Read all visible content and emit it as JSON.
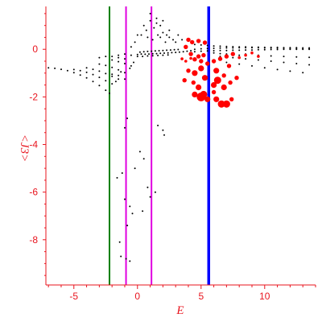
{
  "chart_data": {
    "type": "scatter",
    "xlabel": "E",
    "ylabel": "<J3>",
    "xlim": [
      -7.2,
      14.0
    ],
    "ylim": [
      -9.9,
      1.8
    ],
    "grid": false,
    "x_ticks": [
      -5,
      0,
      5,
      10
    ],
    "y_ticks": [
      0,
      -2,
      -4,
      -6,
      -8
    ],
    "vertical_lines": [
      {
        "x": -2.2,
        "color": "#008000"
      },
      {
        "x": -0.9,
        "color": "#e000e0"
      },
      {
        "x": 1.1,
        "color": "#e000e0"
      },
      {
        "x": 5.6,
        "color": "#0000ff"
      }
    ],
    "series": [
      {
        "color": "#000000",
        "points": [
          [
            -7.0,
            -0.78
          ],
          [
            -6.5,
            -0.8
          ],
          [
            -6.0,
            -0.84
          ],
          [
            -5.5,
            -0.9
          ],
          [
            -5.0,
            -0.98
          ],
          [
            -4.5,
            -1.08
          ],
          [
            -4.0,
            -1.2
          ],
          [
            -3.5,
            -1.35
          ],
          [
            -3.0,
            -1.52
          ],
          [
            -2.5,
            -1.72
          ],
          [
            -2.2,
            -1.85
          ],
          [
            -5.0,
            -0.85
          ],
          [
            -4.5,
            -0.9
          ],
          [
            -4.0,
            -0.97
          ],
          [
            -3.5,
            -1.06
          ],
          [
            -3.0,
            -1.18
          ],
          [
            -2.5,
            -1.32
          ],
          [
            -2.0,
            -1.45
          ],
          [
            -4.0,
            -0.78
          ],
          [
            -3.5,
            -0.84
          ],
          [
            -3.0,
            -0.92
          ],
          [
            -2.5,
            -1.02
          ],
          [
            -2.0,
            -1.14
          ],
          [
            -1.5,
            -1.25
          ],
          [
            -3.0,
            -0.62
          ],
          [
            -2.5,
            -0.68
          ],
          [
            -2.0,
            -0.76
          ],
          [
            -1.5,
            -0.86
          ],
          [
            -1.0,
            -0.98
          ],
          [
            -2.0,
            -0.45
          ],
          [
            -1.5,
            -0.52
          ],
          [
            -1.0,
            -0.6
          ],
          [
            -0.5,
            -0.7
          ],
          [
            -3.0,
            -0.35
          ],
          [
            -2.5,
            -0.3
          ],
          [
            -2.0,
            -0.3
          ],
          [
            -1.5,
            -0.35
          ],
          [
            -1.0,
            -0.4
          ],
          [
            -1.5,
            -0.25
          ],
          [
            -1.0,
            -0.2
          ],
          [
            -0.5,
            -0.25
          ],
          [
            0.0,
            -0.3
          ],
          [
            0.0,
            -0.22
          ],
          [
            0.3,
            -0.2
          ],
          [
            0.6,
            -0.21
          ],
          [
            0.9,
            -0.2
          ],
          [
            1.2,
            -0.19
          ],
          [
            1.5,
            -0.18
          ],
          [
            1.8,
            -0.17
          ],
          [
            2.1,
            -0.16
          ],
          [
            2.4,
            -0.15
          ],
          [
            2.7,
            -0.14
          ],
          [
            3.0,
            -0.13
          ],
          [
            3.3,
            -0.12
          ],
          [
            3.6,
            -0.1
          ],
          [
            3.9,
            -0.08
          ],
          [
            4.2,
            -0.06
          ],
          [
            0.2,
            -0.12
          ],
          [
            0.5,
            -0.1
          ],
          [
            0.8,
            -0.09
          ],
          [
            1.1,
            -0.08
          ],
          [
            1.4,
            -0.07
          ],
          [
            1.7,
            -0.06
          ],
          [
            2.0,
            -0.05
          ],
          [
            2.3,
            -0.04
          ],
          [
            2.6,
            -0.03
          ],
          [
            2.9,
            -0.02
          ],
          [
            3.2,
            -0.01
          ],
          [
            0.4,
            -0.3
          ],
          [
            0.8,
            -0.28
          ],
          [
            1.2,
            -0.27
          ],
          [
            1.6,
            -0.26
          ],
          [
            2.0,
            -0.25
          ],
          [
            2.4,
            -0.24
          ],
          [
            4.5,
            0.0
          ],
          [
            5.0,
            0.02
          ],
          [
            5.5,
            0.03
          ],
          [
            6.0,
            0.04
          ],
          [
            6.5,
            0.05
          ],
          [
            7.0,
            0.06
          ],
          [
            7.5,
            0.06
          ],
          [
            8.0,
            0.07
          ],
          [
            8.5,
            0.07
          ],
          [
            9.0,
            0.07
          ],
          [
            9.5,
            0.07
          ],
          [
            10.0,
            0.06
          ],
          [
            10.5,
            0.06
          ],
          [
            11.0,
            0.05
          ],
          [
            11.5,
            0.05
          ],
          [
            12.0,
            0.04
          ],
          [
            12.5,
            0.04
          ],
          [
            13.0,
            0.03
          ],
          [
            13.5,
            0.03
          ],
          [
            4.5,
            0.2
          ],
          [
            5.0,
            0.18
          ],
          [
            5.5,
            0.16
          ],
          [
            6.0,
            0.14
          ],
          [
            6.5,
            0.13
          ],
          [
            7.0,
            0.12
          ],
          [
            7.5,
            0.11
          ],
          [
            8.0,
            0.1
          ],
          [
            8.5,
            0.1
          ],
          [
            9.0,
            0.09
          ],
          [
            9.5,
            0.09
          ],
          [
            10.0,
            0.08
          ],
          [
            10.5,
            0.08
          ],
          [
            11.0,
            0.08
          ],
          [
            11.5,
            0.07
          ],
          [
            12.0,
            0.07
          ],
          [
            12.5,
            0.07
          ],
          [
            13.0,
            0.06
          ],
          [
            13.5,
            0.06
          ],
          [
            4.5,
            -0.1
          ],
          [
            5.0,
            -0.08
          ],
          [
            5.5,
            -0.07
          ],
          [
            6.0,
            -0.06
          ],
          [
            6.5,
            -0.05
          ],
          [
            7.0,
            -0.05
          ],
          [
            7.5,
            -0.04
          ],
          [
            8.0,
            -0.04
          ],
          [
            8.5,
            -0.03
          ],
          [
            9.0,
            -0.03
          ],
          [
            9.5,
            -0.02
          ],
          [
            10.0,
            -0.02
          ],
          [
            10.5,
            -0.01
          ],
          [
            11.0,
            -0.01
          ],
          [
            11.5,
            0.0
          ],
          [
            12.0,
            0.0
          ],
          [
            12.5,
            0.0
          ],
          [
            13.0,
            0.0
          ],
          [
            13.5,
            0.0
          ],
          [
            6.5,
            -0.3
          ],
          [
            7.5,
            -0.35
          ],
          [
            8.5,
            -0.4
          ],
          [
            9.5,
            -0.45
          ],
          [
            10.5,
            -0.5
          ],
          [
            11.5,
            -0.55
          ],
          [
            12.5,
            -0.6
          ],
          [
            13.5,
            -0.65
          ],
          [
            7.0,
            -0.55
          ],
          [
            8.0,
            -0.62
          ],
          [
            9.0,
            -0.7
          ],
          [
            10.0,
            -0.78
          ],
          [
            11.0,
            -0.85
          ],
          [
            12.0,
            -0.92
          ],
          [
            13.0,
            -0.98
          ],
          [
            8.5,
            -0.2
          ],
          [
            9.5,
            -0.25
          ],
          [
            10.5,
            -0.28
          ],
          [
            11.5,
            -0.3
          ],
          [
            12.5,
            -0.32
          ],
          [
            13.5,
            -0.34
          ],
          [
            6.0,
            -0.15
          ],
          [
            6.5,
            -0.18
          ],
          [
            7.0,
            -0.2
          ],
          [
            7.5,
            -0.22
          ],
          [
            8.0,
            -0.25
          ],
          [
            0.5,
            1.0
          ],
          [
            0.7,
            0.8
          ],
          [
            1.0,
            1.2
          ],
          [
            1.3,
            0.9
          ],
          [
            1.5,
            1.1
          ],
          [
            1.8,
            1.0
          ],
          [
            2.0,
            0.7
          ],
          [
            2.3,
            0.6
          ],
          [
            2.5,
            0.5
          ],
          [
            2.8,
            0.4
          ],
          [
            3.0,
            0.3
          ],
          [
            0.8,
            0.5
          ],
          [
            1.2,
            0.4
          ],
          [
            1.6,
            0.6
          ],
          [
            2.2,
            0.3
          ],
          [
            1.0,
            1.5
          ],
          [
            1.5,
            1.3
          ],
          [
            2.0,
            1.2
          ],
          [
            2.5,
            0.8
          ],
          [
            3.2,
            0.6
          ],
          [
            3.5,
            0.4
          ],
          [
            1.8,
            0.5
          ],
          [
            0.3,
            0.6
          ],
          [
            -0.2,
            0.3
          ],
          [
            -0.5,
            0.1
          ],
          [
            0.0,
            0.6
          ],
          [
            -2.0,
            -1.05
          ],
          [
            -1.5,
            -1.1
          ],
          [
            -1.0,
            -1.25
          ],
          [
            -1.3,
            -0.95
          ],
          [
            -0.6,
            -0.8
          ],
          [
            -1.7,
            -1.35
          ],
          [
            -0.3,
            -0.55
          ],
          [
            -0.8,
            -2.9
          ],
          [
            -1.0,
            -3.3
          ],
          [
            -1.2,
            -5.2
          ],
          [
            -1.6,
            -5.4
          ],
          [
            -1.0,
            -6.3
          ],
          [
            -0.6,
            -6.6
          ],
          [
            -0.4,
            -6.9
          ],
          [
            -0.8,
            -7.4
          ],
          [
            -1.3,
            -8.7
          ],
          [
            -0.9,
            -8.8
          ],
          [
            -0.6,
            -8.9
          ],
          [
            -1.4,
            -8.1
          ],
          [
            0.2,
            -4.3
          ],
          [
            0.5,
            -4.6
          ],
          [
            0.8,
            -5.8
          ],
          [
            1.0,
            -6.2
          ],
          [
            1.4,
            -6.0
          ],
          [
            1.6,
            -3.2
          ],
          [
            2.0,
            -3.4
          ],
          [
            2.1,
            -3.6
          ],
          [
            -0.2,
            -5.0
          ],
          [
            0.4,
            -6.8
          ]
        ]
      },
      {
        "color": "#ff0000",
        "points": [
          [
            4.0,
            0.4,
            3
          ],
          [
            4.3,
            0.3,
            3
          ],
          [
            4.8,
            0.35,
            3
          ],
          [
            5.3,
            0.28,
            3
          ],
          [
            3.8,
            0.1,
            3
          ],
          [
            4.2,
            -0.2,
            3
          ],
          [
            3.5,
            -0.4,
            2
          ],
          [
            3.8,
            -0.5,
            2
          ],
          [
            4.2,
            -0.38,
            2
          ],
          [
            4.5,
            -0.42,
            3
          ],
          [
            4.8,
            -0.3,
            3
          ],
          [
            5.0,
            -0.5,
            3
          ],
          [
            5.2,
            -0.25,
            3
          ],
          [
            5.5,
            -0.6,
            3
          ],
          [
            6.0,
            -0.5,
            3
          ],
          [
            6.5,
            -0.4,
            3
          ],
          [
            7.0,
            -0.3,
            3
          ],
          [
            7.5,
            -0.2,
            3
          ],
          [
            8.0,
            -0.35,
            2
          ],
          [
            8.5,
            -0.25,
            2
          ],
          [
            9.0,
            -0.15,
            2
          ],
          [
            9.5,
            -0.3,
            2
          ],
          [
            4.0,
            -0.9,
            3
          ],
          [
            4.5,
            -1.0,
            4
          ],
          [
            5.0,
            -0.8,
            4
          ],
          [
            5.3,
            -1.2,
            4
          ],
          [
            6.2,
            -0.9,
            4
          ],
          [
            6.8,
            -1.1,
            3
          ],
          [
            7.2,
            -0.7,
            3
          ],
          [
            4.4,
            -1.4,
            3
          ],
          [
            4.8,
            -1.6,
            4
          ],
          [
            5.2,
            -1.9,
            5
          ],
          [
            6.0,
            -1.5,
            4
          ],
          [
            6.3,
            -1.3,
            5
          ],
          [
            6.8,
            -1.6,
            4
          ],
          [
            7.3,
            -1.4,
            3
          ],
          [
            7.8,
            -1.2,
            3
          ],
          [
            3.7,
            -1.3,
            3
          ],
          [
            6.2,
            -2.1,
            4
          ],
          [
            6.6,
            -2.3,
            5
          ],
          [
            7.0,
            -2.3,
            5
          ],
          [
            7.4,
            -2.1,
            3
          ],
          [
            5.0,
            -2.0,
            6
          ],
          [
            4.5,
            -1.9,
            4
          ],
          [
            5.5,
            -2.1,
            4
          ],
          [
            6.0,
            -1.8,
            3
          ]
        ]
      }
    ]
  }
}
